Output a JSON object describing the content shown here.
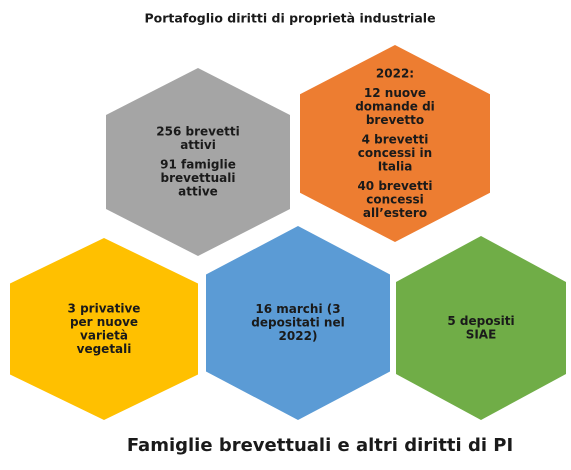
{
  "title": "Portafoglio diritti di proprietà industriale",
  "caption": "Famiglie brevettuali e altri diritti di PI",
  "hexagons": [
    {
      "color": "#a5a5a5",
      "paragraphs": [
        [
          "256 brevetti",
          "attivi"
        ],
        [
          "91 famiglie",
          "brevettuali",
          "attive"
        ]
      ]
    },
    {
      "color": "#ed7d31",
      "paragraphs": [
        [
          "2022:"
        ],
        [
          "12 nuove",
          "domande di",
          "brevetto"
        ],
        [
          "4 brevetti",
          "concessi in",
          "Italia"
        ],
        [
          "40 brevetti",
          "concessi",
          "all’estero"
        ]
      ]
    },
    {
      "color": "#ffc000",
      "paragraphs": [
        [
          "3 privative",
          "per nuove",
          "varietà",
          "vegetali"
        ]
      ]
    },
    {
      "color": "#5b9bd5",
      "paragraphs": [
        [
          "16 marchi (3",
          "depositati nel",
          "2022)"
        ]
      ]
    },
    {
      "color": "#70ad47",
      "paragraphs": [
        [
          "5 depositi",
          "SIAE"
        ]
      ]
    }
  ]
}
